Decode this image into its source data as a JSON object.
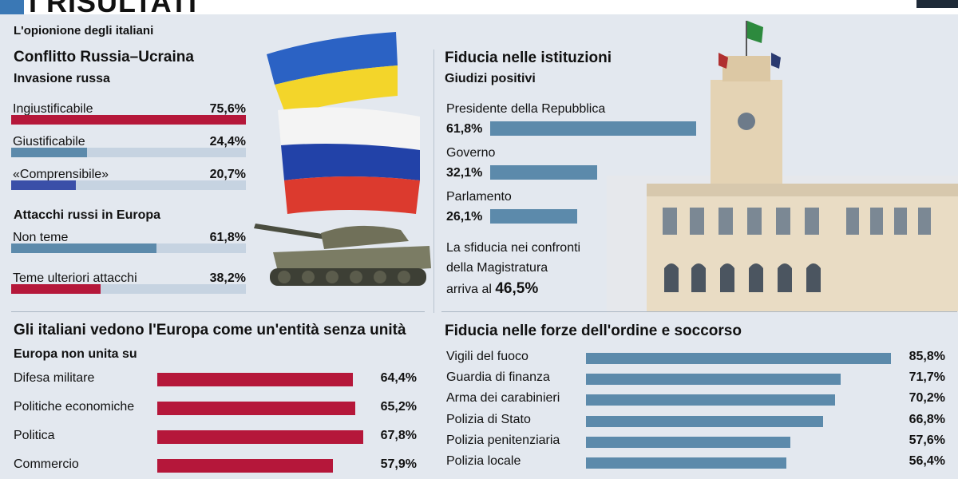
{
  "header": {
    "title": "I RISULTATI"
  },
  "colors": {
    "red": "#b5173a",
    "steel": "#5c8aab",
    "navy": "#3a4fa8",
    "track": "#c6d3e1"
  },
  "left": {
    "kicker": "L'opionione degli italiani",
    "title": "Conflitto Russia–Ucraina",
    "invasion": {
      "subtitle": "Invasione russa",
      "items": [
        {
          "label": "Ingiustificabile",
          "pct": "75,6%",
          "value": 75.6
        },
        {
          "label": "Giustificabile",
          "pct": "24,4%",
          "value": 24.4
        },
        {
          "label": "«Comprensibile»",
          "pct": "20,7%",
          "value": 20.7
        }
      ]
    },
    "attacks": {
      "subtitle": "Attacchi russi in Europa",
      "items": [
        {
          "label": "Non teme",
          "pct": "61,8%",
          "value": 61.8
        },
        {
          "label": "Teme ulteriori attacchi",
          "pct": "38,2%",
          "value": 38.2
        }
      ]
    },
    "europe": {
      "title": "Gli italiani vedono l'Europa come un'entità senza unità",
      "subtitle": "Europa non unita su",
      "items": [
        {
          "label": "Difesa militare",
          "pct": "64,4%",
          "value": 64.4
        },
        {
          "label": "Politiche economiche",
          "pct": "65,2%",
          "value": 65.2
        },
        {
          "label": "Politica",
          "pct": "67,8%",
          "value": 67.8
        },
        {
          "label": "Commercio",
          "pct": "57,9%",
          "value": 57.9
        }
      ]
    }
  },
  "right": {
    "institutions": {
      "title": "Fiducia nelle istituzioni",
      "subtitle": "Giudizi positivi",
      "items": [
        {
          "label": "Presidente della Repubblica",
          "pct": "61,8%",
          "value": 61.8
        },
        {
          "label": "Governo",
          "pct": "32,1%",
          "value": 32.1
        },
        {
          "label": "Parlamento",
          "pct": "26,1%",
          "value": 26.1
        }
      ],
      "note_line1": "La sfiducia nei confronti",
      "note_line2": "della Magistratura",
      "note_line3_prefix": "arriva al",
      "note_value": "46,5%"
    },
    "forces": {
      "title": "Fiducia nelle forze dell'ordine e soccorso",
      "items": [
        {
          "label": "Vigili del fuoco",
          "pct": "85,8%",
          "value": 85.8
        },
        {
          "label": "Guardia di finanza",
          "pct": "71,7%",
          "value": 71.7
        },
        {
          "label": "Arma dei carabinieri",
          "pct": "70,2%",
          "value": 70.2
        },
        {
          "label": "Polizia di Stato",
          "pct": "66,8%",
          "value": 66.8
        },
        {
          "label": "Polizia penitenziaria",
          "pct": "57,6%",
          "value": 57.6
        },
        {
          "label": "Polizia locale",
          "pct": "56,4%",
          "value": 56.4
        }
      ]
    }
  },
  "chart_data": [
    {
      "type": "bar",
      "title": "Invasione russa",
      "categories": [
        "Ingiustificabile",
        "Giustificabile",
        "«Comprensibile»"
      ],
      "values": [
        75.6,
        24.4,
        20.7
      ],
      "ylim": [
        0,
        75.6
      ]
    },
    {
      "type": "bar",
      "title": "Attacchi russi in Europa",
      "categories": [
        "Non teme",
        "Teme ulteriori attacchi"
      ],
      "values": [
        61.8,
        38.2
      ],
      "ylim": [
        0,
        100
      ]
    },
    {
      "type": "bar",
      "title": "Europa non unita su",
      "categories": [
        "Difesa militare",
        "Politiche economiche",
        "Politica",
        "Commercio"
      ],
      "values": [
        64.4,
        65.2,
        67.8,
        57.9
      ]
    },
    {
      "type": "bar",
      "title": "Fiducia nelle istituzioni",
      "categories": [
        "Presidente della Repubblica",
        "Governo",
        "Parlamento"
      ],
      "values": [
        61.8,
        32.1,
        26.1
      ]
    },
    {
      "type": "bar",
      "title": "Fiducia nelle forze dell'ordine e soccorso",
      "categories": [
        "Vigili del fuoco",
        "Guardia di finanza",
        "Arma dei carabinieri",
        "Polizia di Stato",
        "Polizia penitenziaria",
        "Polizia locale"
      ],
      "values": [
        85.8,
        71.7,
        70.2,
        66.8,
        57.6,
        56.4
      ]
    }
  ]
}
